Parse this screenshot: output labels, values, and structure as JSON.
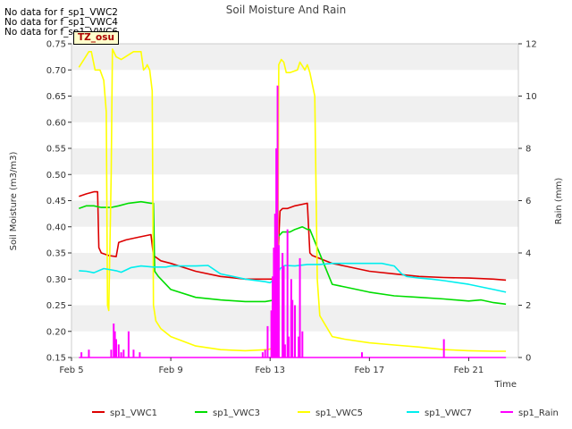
{
  "messages": [
    "No data for f_sp1_VWC2",
    "No data for f_sp1_VWC4",
    "No data for f_sp1_VWC6"
  ],
  "tz_label": "TZ_osu",
  "chart_data": {
    "type": "line",
    "title": "Soil Moisture And Rain",
    "xlabel": "Time",
    "ylabel": "Soil Moisture (m3/m3)",
    "ylabel_right": "Rain (mm)",
    "xticks": [
      "Feb 5",
      "Feb 9",
      "Feb 13",
      "Feb 17",
      "Feb 21"
    ],
    "xlim": [
      5,
      23
    ],
    "ylim": [
      0.15,
      0.75
    ],
    "ylim_right": [
      0,
      12
    ],
    "yticks": [
      "0.15",
      "0.20",
      "0.25",
      "0.30",
      "0.35",
      "0.40",
      "0.45",
      "0.50",
      "0.55",
      "0.60",
      "0.65",
      "0.70",
      "0.75"
    ],
    "yticks_right": [
      "0",
      "2",
      "4",
      "6",
      "8",
      "10",
      "12"
    ],
    "grid": "horizontal bands",
    "legend": "bottom",
    "series": [
      {
        "name": "sp1_VWC1",
        "color": "#dd0000",
        "axis": "left",
        "x": [
          5.3,
          5.6,
          5.9,
          6.05,
          6.1,
          6.2,
          6.5,
          6.8,
          6.9,
          7.2,
          7.7,
          8.2,
          8.3,
          8.6,
          9.0,
          10.0,
          11.0,
          12.0,
          12.8,
          13.2,
          13.3,
          13.4,
          13.5,
          13.7,
          14.0,
          14.5,
          14.6,
          14.7,
          15.5,
          16.0,
          17.0,
          18.0,
          19.0,
          20.0,
          21.0,
          22.0,
          22.5
        ],
        "y": [
          0.458,
          0.463,
          0.467,
          0.467,
          0.36,
          0.35,
          0.345,
          0.343,
          0.37,
          0.375,
          0.38,
          0.385,
          0.345,
          0.335,
          0.33,
          0.315,
          0.305,
          0.3,
          0.3,
          0.3,
          0.33,
          0.43,
          0.435,
          0.435,
          0.44,
          0.445,
          0.35,
          0.345,
          0.33,
          0.325,
          0.315,
          0.31,
          0.305,
          0.303,
          0.302,
          0.3,
          0.298
        ]
      },
      {
        "name": "sp1_VWC3",
        "color": "#00dd00",
        "axis": "left",
        "x": [
          5.3,
          5.6,
          5.9,
          6.2,
          6.6,
          6.9,
          7.3,
          7.8,
          8.2,
          8.3,
          8.35,
          8.5,
          9.0,
          10.0,
          11.0,
          12.0,
          12.8,
          13.2,
          13.3,
          13.5,
          13.8,
          14.0,
          14.3,
          14.5,
          14.6,
          15.5,
          16.0,
          17.0,
          18.0,
          19.0,
          20.0,
          21.0,
          21.5,
          22.0,
          22.5
        ],
        "y": [
          0.435,
          0.44,
          0.44,
          0.437,
          0.437,
          0.44,
          0.445,
          0.448,
          0.445,
          0.445,
          0.315,
          0.305,
          0.28,
          0.265,
          0.26,
          0.257,
          0.257,
          0.26,
          0.38,
          0.39,
          0.39,
          0.395,
          0.4,
          0.395,
          0.395,
          0.29,
          0.285,
          0.275,
          0.268,
          0.265,
          0.262,
          0.258,
          0.26,
          0.255,
          0.252
        ]
      },
      {
        "name": "sp1_VWC5",
        "color": "#ffff00",
        "axis": "left",
        "x": [
          5.3,
          5.5,
          5.7,
          5.8,
          5.95,
          6.15,
          6.3,
          6.4,
          6.45,
          6.5,
          6.6,
          6.65,
          6.8,
          7.0,
          7.5,
          7.8,
          7.9,
          8.0,
          8.05,
          8.15,
          8.25,
          8.3,
          8.4,
          8.6,
          9.0,
          10.0,
          11.0,
          12.0,
          12.9,
          13.3,
          13.35,
          13.45,
          13.55,
          13.65,
          13.8,
          14.1,
          14.2,
          14.4,
          14.5,
          14.6,
          14.8,
          14.9,
          15.0,
          15.5,
          16.0,
          17.0,
          18.0,
          19.0,
          20.0,
          21.0,
          22.0,
          22.5
        ],
        "y": [
          0.705,
          0.72,
          0.735,
          0.735,
          0.7,
          0.7,
          0.68,
          0.62,
          0.25,
          0.24,
          0.5,
          0.74,
          0.725,
          0.72,
          0.735,
          0.735,
          0.7,
          0.705,
          0.71,
          0.7,
          0.66,
          0.25,
          0.22,
          0.205,
          0.19,
          0.172,
          0.165,
          0.163,
          0.165,
          0.17,
          0.71,
          0.72,
          0.715,
          0.695,
          0.695,
          0.7,
          0.715,
          0.7,
          0.71,
          0.695,
          0.65,
          0.3,
          0.23,
          0.19,
          0.185,
          0.178,
          0.174,
          0.17,
          0.165,
          0.163,
          0.162,
          0.162
        ]
      },
      {
        "name": "sp1_VWC7",
        "color": "#00eeee",
        "axis": "left",
        "x": [
          5.3,
          5.6,
          5.9,
          6.3,
          6.8,
          7.0,
          7.4,
          7.8,
          8.3,
          8.8,
          9.0,
          9.5,
          10.0,
          10.5,
          11.0,
          11.5,
          12.0,
          12.8,
          13.0,
          13.2,
          13.4,
          13.6,
          14.0,
          14.5,
          15.0,
          15.5,
          16.0,
          17.0,
          17.5,
          18.0,
          18.3,
          18.5,
          19.0,
          19.5,
          20.0,
          21.0,
          22.0,
          22.5
        ],
        "y": [
          0.316,
          0.315,
          0.312,
          0.32,
          0.316,
          0.313,
          0.322,
          0.325,
          0.323,
          0.323,
          0.325,
          0.325,
          0.325,
          0.326,
          0.31,
          0.305,
          0.3,
          0.295,
          0.293,
          0.3,
          0.32,
          0.326,
          0.325,
          0.328,
          0.328,
          0.33,
          0.33,
          0.33,
          0.33,
          0.325,
          0.31,
          0.305,
          0.302,
          0.3,
          0.297,
          0.29,
          0.28,
          0.275
        ]
      }
    ],
    "rain": {
      "name": "sp1_Rain",
      "color": "#ff00ff",
      "axis": "right",
      "x": [
        5.4,
        5.7,
        6.6,
        6.7,
        6.75,
        6.8,
        6.9,
        7.0,
        7.1,
        7.3,
        7.5,
        7.75,
        12.7,
        12.8,
        12.9,
        13.05,
        13.1,
        13.15,
        13.2,
        13.25,
        13.3,
        13.35,
        13.5,
        13.55,
        13.6,
        13.7,
        13.75,
        13.85,
        13.9,
        14.0,
        14.15,
        14.2,
        14.3,
        16.7,
        20.0
      ],
      "values": [
        0.2,
        0.3,
        0.3,
        1.3,
        1.0,
        0.7,
        0.5,
        0.2,
        0.3,
        1.0,
        0.3,
        0.2,
        0.2,
        0.3,
        1.2,
        1.8,
        3.1,
        4.2,
        5.5,
        8.0,
        10.4,
        4.3,
        4.0,
        3.5,
        0.5,
        4.9,
        0.8,
        3.0,
        2.2,
        2.0,
        0.8,
        3.8,
        1.0,
        0.2,
        0.7
      ]
    }
  }
}
